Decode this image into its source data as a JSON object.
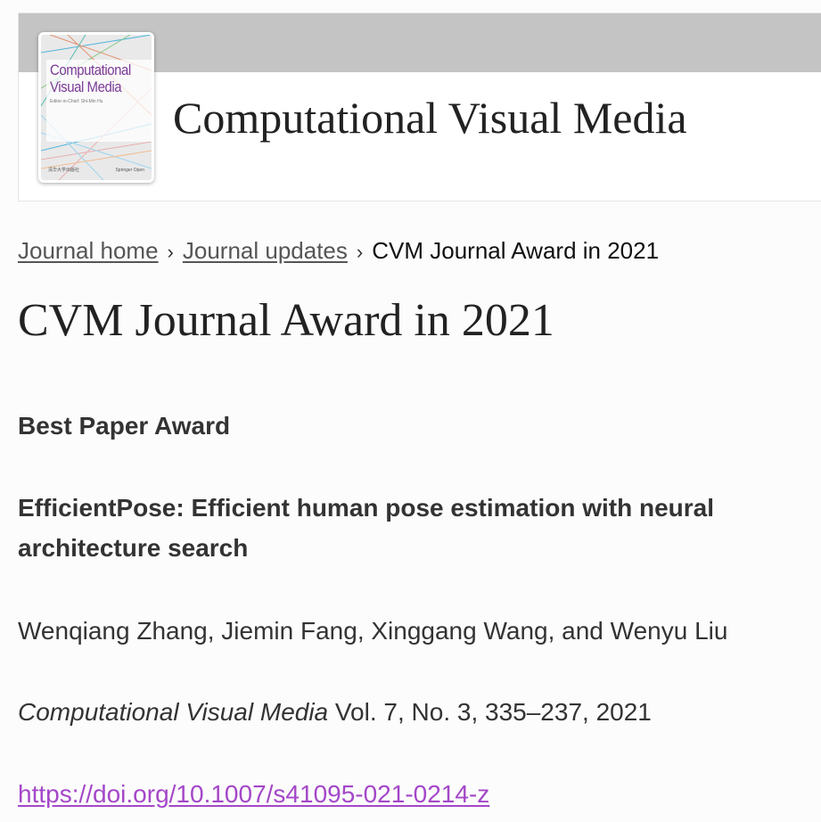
{
  "header": {
    "journal_title": "Computational Visual Media",
    "cover": {
      "title_line1": "Computational",
      "title_line2": "Visual Media",
      "editor": "Editor-in-Chief: Shi-Min Hu",
      "publisher_left": "清华大学出版社",
      "publisher_right": "Springer Open"
    }
  },
  "breadcrumb": [
    {
      "label": "Journal home"
    },
    {
      "label": "Journal updates"
    },
    {
      "label": "CVM Journal Award in 2021"
    }
  ],
  "page_title": "CVM Journal Award in 2021",
  "award": {
    "heading": "Best Paper Award",
    "paper_title_line1": "EfficientPose: Efficient human pose estimation with neural",
    "paper_title_line2": "architecture search",
    "authors": "Wenqiang Zhang, Jiemin Fang, Xinggang Wang, and Wenyu Liu",
    "journal": "Computational Visual Media",
    "citation": " Vol. 7, No. 3, 335–237, 2021",
    "doi": "https://doi.org/10.1007/s41095-021-0214-z"
  },
  "colors": {
    "link": "#a447c8",
    "band": "#c4c4c4",
    "cover_title": "#7b3a96"
  }
}
